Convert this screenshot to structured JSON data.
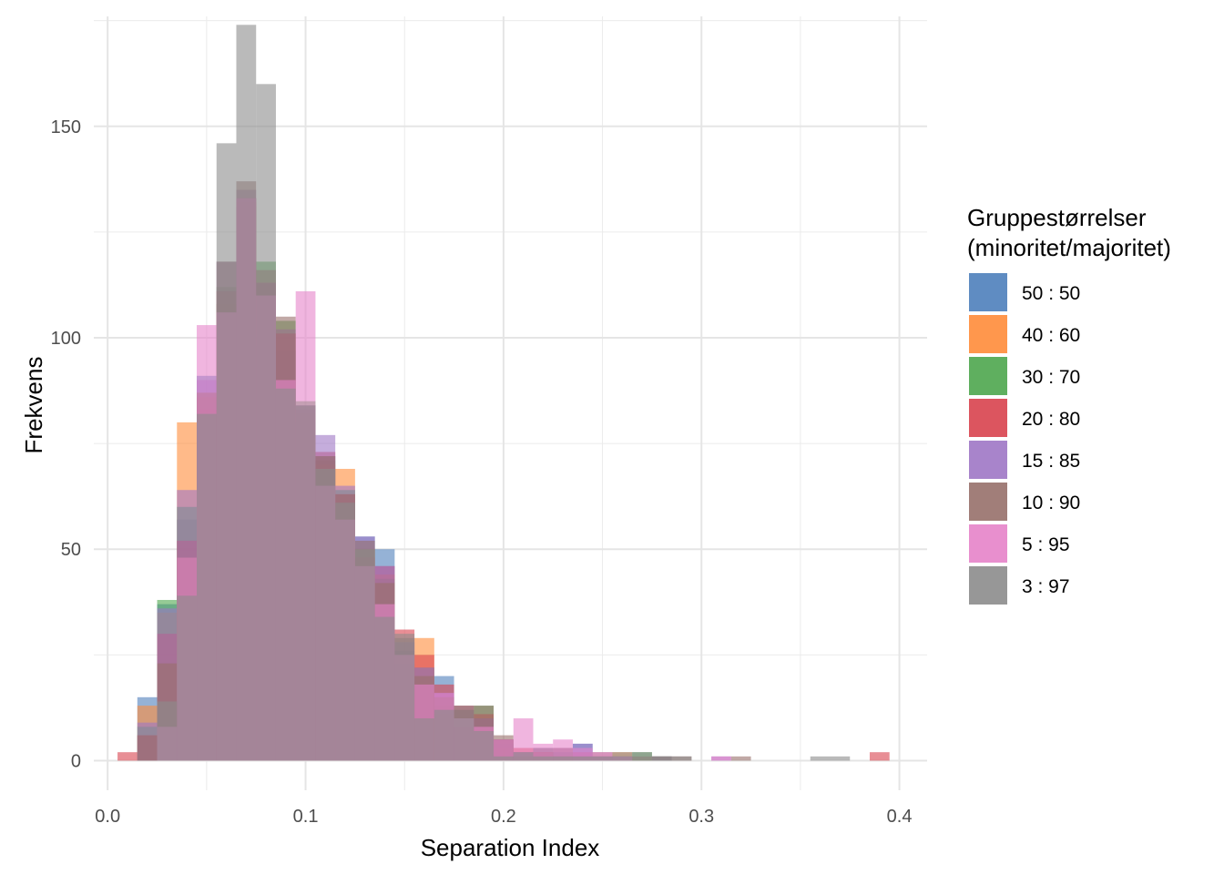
{
  "chart_data": {
    "type": "histogram",
    "xlabel": "Separation Index",
    "ylabel": "Frekvens",
    "xlim": [
      -0.007,
      0.414
    ],
    "ylim": [
      -7,
      176
    ],
    "x_ticks": [
      "0.0",
      "0.1",
      "0.2",
      "0.3",
      "0.4"
    ],
    "x_tick_values": [
      0.0,
      0.1,
      0.2,
      0.3,
      0.4
    ],
    "y_ticks": [
      "0",
      "50",
      "100",
      "150"
    ],
    "y_tick_values": [
      0,
      50,
      100,
      150
    ],
    "grid": true,
    "bin_width": 0.01,
    "bin_starts": [
      0.005,
      0.015,
      0.025,
      0.035,
      0.045,
      0.055,
      0.065,
      0.075,
      0.085,
      0.095,
      0.105,
      0.115,
      0.125,
      0.135,
      0.145,
      0.155,
      0.165,
      0.175,
      0.185,
      0.195,
      0.205,
      0.215,
      0.225,
      0.235,
      0.245,
      0.255,
      0.265,
      0.275,
      0.285,
      0.295,
      0.305,
      0.315,
      0.325,
      0.335,
      0.345,
      0.355,
      0.365,
      0.375,
      0.385
    ],
    "legend": {
      "title_line1": "Gruppestørrelser",
      "title_line2": "(minoritet/majoritet)",
      "position": "right"
    },
    "series": [
      {
        "name": "50 : 50",
        "color": "#4E7FBB",
        "values": [
          0,
          15,
          37,
          57,
          91,
          108,
          131,
          98,
          97,
          80,
          72,
          61,
          53,
          50,
          26,
          18,
          20,
          12,
          10,
          4,
          2,
          3,
          2,
          4,
          1,
          0,
          0,
          0,
          0,
          0,
          0,
          0,
          0,
          0,
          0,
          0,
          0,
          0,
          0
        ]
      },
      {
        "name": "40 : 60",
        "color": "#FF8C3A",
        "values": [
          0,
          13,
          35,
          80,
          86,
          108,
          132,
          110,
          101,
          82,
          70,
          69,
          50,
          44,
          25,
          29,
          11,
          13,
          8,
          3,
          2,
          2,
          1,
          0,
          0,
          2,
          0,
          0,
          0,
          0,
          0,
          0,
          0,
          0,
          0,
          0,
          0,
          0,
          0
        ]
      },
      {
        "name": "30 : 70",
        "color": "#4EA64E",
        "values": [
          0,
          8,
          38,
          60,
          87,
          112,
          133,
          118,
          104,
          85,
          71,
          64,
          50,
          43,
          23,
          22,
          13,
          12,
          13,
          5,
          1,
          2,
          1,
          0,
          0,
          1,
          2,
          1,
          0,
          0,
          0,
          0,
          0,
          0,
          0,
          0,
          0,
          0,
          0
        ]
      },
      {
        "name": "20 : 80",
        "color": "#D8424E",
        "values": [
          2,
          6,
          30,
          52,
          83,
          111,
          133,
          113,
          101,
          83,
          73,
          63,
          48,
          46,
          31,
          25,
          18,
          8,
          11,
          5,
          3,
          2,
          1,
          2,
          1,
          0,
          0,
          0,
          0,
          0,
          0,
          0,
          0,
          0,
          0,
          0,
          0,
          0,
          2
        ]
      },
      {
        "name": "15 : 85",
        "color": "#9E77C5",
        "values": [
          0,
          9,
          36,
          64,
          90,
          118,
          135,
          113,
          102,
          84,
          77,
          65,
          53,
          46,
          28,
          22,
          16,
          13,
          10,
          5,
          2,
          2,
          3,
          4,
          1,
          1,
          0,
          1,
          0,
          0,
          1,
          0,
          0,
          0,
          0,
          0,
          0,
          0,
          0
        ]
      },
      {
        "name": "10 : 90",
        "color": "#97706A",
        "values": [
          0,
          6,
          23,
          48,
          87,
          118,
          137,
          116,
          105,
          84,
          72,
          63,
          52,
          42,
          29,
          20,
          15,
          13,
          13,
          6,
          1,
          3,
          3,
          1,
          2,
          1,
          1,
          1,
          1,
          0,
          0,
          1,
          0,
          0,
          0,
          0,
          0,
          0,
          0
        ]
      },
      {
        "name": "5 : 95",
        "color": "#E683C9",
        "values": [
          0,
          0,
          8,
          48,
          103,
          106,
          133,
          110,
          90,
          111,
          65,
          57,
          46,
          37,
          25,
          18,
          16,
          10,
          8,
          5,
          10,
          4,
          5,
          3,
          2,
          1,
          0,
          0,
          0,
          0,
          1,
          0,
          0,
          0,
          0,
          0,
          0,
          0,
          0
        ]
      },
      {
        "name": "3 : 97",
        "color": "#8C8C8C",
        "values": [
          0,
          0,
          14,
          39,
          82,
          146,
          174,
          160,
          88,
          84,
          69,
          61,
          50,
          34,
          30,
          10,
          12,
          10,
          7,
          1,
          2,
          1,
          1,
          1,
          1,
          2,
          2,
          1,
          1,
          0,
          0,
          0,
          0,
          0,
          0,
          1,
          1,
          0,
          0
        ]
      }
    ]
  }
}
